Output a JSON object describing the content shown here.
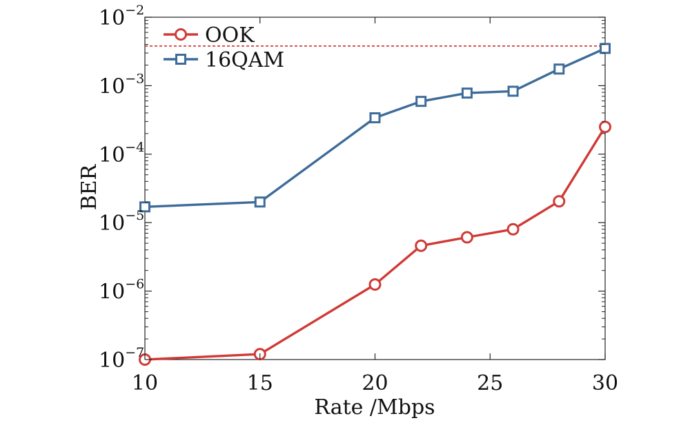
{
  "chart_data": {
    "type": "line",
    "title": "",
    "xlabel": "Rate /Mbps",
    "ylabel": "BER",
    "xlim": [
      10,
      30
    ],
    "ylim": [
      1e-07,
      0.01
    ],
    "yscale": "log",
    "xticks": [
      10,
      15,
      20,
      25,
      30
    ],
    "yticks": [
      {
        "base": "10",
        "exp": "−7",
        "value": 1e-07
      },
      {
        "base": "10",
        "exp": "−6",
        "value": 1e-06
      },
      {
        "base": "10",
        "exp": "−5",
        "value": 1e-05
      },
      {
        "base": "10",
        "exp": "−4",
        "value": 0.0001
      },
      {
        "base": "10",
        "exp": "−3",
        "value": 0.001
      },
      {
        "base": "10",
        "exp": "−2",
        "value": 0.01
      }
    ],
    "threshold": {
      "value": 0.0038,
      "color": "#d62728",
      "style": "dashed"
    },
    "legend_position": "top-left",
    "series": [
      {
        "name": "OOK",
        "color": "#d03a36",
        "marker": "circle",
        "x": [
          10,
          15,
          20,
          22,
          24,
          26,
          28,
          30
        ],
        "y": [
          1e-07,
          1.2e-07,
          1.25e-06,
          4.6e-06,
          6.1e-06,
          8e-06,
          2.05e-05,
          0.00025
        ]
      },
      {
        "name": "16QAM",
        "color": "#3d6b9a",
        "marker": "square",
        "x": [
          10,
          15,
          20,
          22,
          24,
          26,
          28,
          30
        ],
        "y": [
          1.7e-05,
          2e-05,
          0.00034,
          0.00059,
          0.00078,
          0.00083,
          0.00175,
          0.0035
        ]
      }
    ]
  }
}
